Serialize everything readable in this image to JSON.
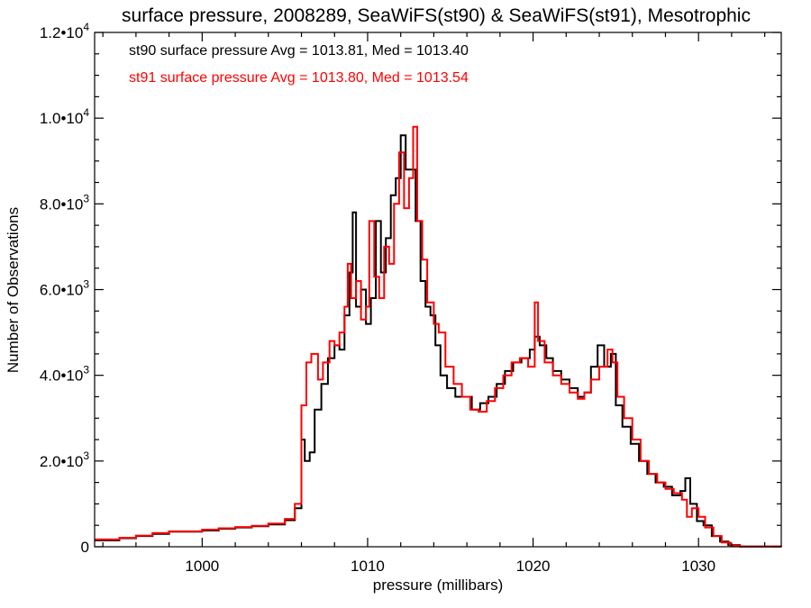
{
  "chart_data": {
    "type": "line",
    "title": "surface pressure, 2008289, SeaWiFS(st90) & SeaWiFS(st91), Mesotrophic",
    "xlabel": "pressure (millibars)",
    "ylabel": "Number of Observations",
    "xlim": [
      993.5,
      1035
    ],
    "ylim": [
      0,
      12000
    ],
    "x_ticks": [
      {
        "value": 1000,
        "label": "1000"
      },
      {
        "value": 1010,
        "label": "1010"
      },
      {
        "value": 1020,
        "label": "1020"
      },
      {
        "value": 1030,
        "label": "1030"
      }
    ],
    "y_ticks": [
      {
        "value": 0,
        "mant": "0",
        "exp": ""
      },
      {
        "value": 2000,
        "mant": "2.0•10",
        "exp": "3"
      },
      {
        "value": 4000,
        "mant": "4.0•10",
        "exp": "3"
      },
      {
        "value": 6000,
        "mant": "6.0•10",
        "exp": "3"
      },
      {
        "value": 8000,
        "mant": "8.0•10",
        "exp": "3"
      },
      {
        "value": 10000,
        "mant": "1.0•10",
        "exp": "4"
      },
      {
        "value": 12000,
        "mant": "1.2•10",
        "exp": "4"
      }
    ],
    "grid": false,
    "legend_position": "top-left",
    "series": [
      {
        "name": "st90",
        "color": "#000000",
        "legend": "st90 surface pressure Avg = 1013.81, Med = 1013.40",
        "points": [
          [
            993.5,
            150
          ],
          [
            995,
            200
          ],
          [
            996,
            250
          ],
          [
            997,
            300
          ],
          [
            998,
            350
          ],
          [
            999,
            350
          ],
          [
            1000,
            380
          ],
          [
            1001,
            420
          ],
          [
            1002,
            450
          ],
          [
            1003,
            480
          ],
          [
            1004,
            520
          ],
          [
            1005,
            620
          ],
          [
            1005.6,
            900
          ],
          [
            1006.0,
            2500
          ],
          [
            1006.2,
            2000
          ],
          [
            1006.5,
            2200
          ],
          [
            1006.8,
            3200
          ],
          [
            1007.2,
            3800
          ],
          [
            1007.6,
            4400
          ],
          [
            1008.0,
            4700
          ],
          [
            1008.3,
            4600
          ],
          [
            1008.6,
            5400
          ],
          [
            1008.9,
            6400
          ],
          [
            1009.1,
            7800
          ],
          [
            1009.3,
            5600
          ],
          [
            1009.6,
            6000
          ],
          [
            1009.9,
            5200
          ],
          [
            1010.2,
            5800
          ],
          [
            1010.5,
            7600
          ],
          [
            1010.8,
            6400
          ],
          [
            1011.1,
            7200
          ],
          [
            1011.4,
            8200
          ],
          [
            1011.7,
            8600
          ],
          [
            1012.0,
            9600
          ],
          [
            1012.3,
            8800
          ],
          [
            1012.6,
            8800
          ],
          [
            1012.9,
            7600
          ],
          [
            1013.2,
            6200
          ],
          [
            1013.5,
            5600
          ],
          [
            1013.8,
            5400
          ],
          [
            1014.1,
            4700
          ],
          [
            1014.4,
            4000
          ],
          [
            1014.8,
            3700
          ],
          [
            1015.3,
            3500
          ],
          [
            1015.8,
            3500
          ],
          [
            1016.3,
            3200
          ],
          [
            1016.8,
            3350
          ],
          [
            1017.3,
            3500
          ],
          [
            1017.8,
            3800
          ],
          [
            1018.3,
            4100
          ],
          [
            1018.8,
            4300
          ],
          [
            1019.3,
            4400
          ],
          [
            1019.8,
            4600
          ],
          [
            1020.1,
            4900
          ],
          [
            1020.4,
            4700
          ],
          [
            1020.8,
            4400
          ],
          [
            1021.2,
            4100
          ],
          [
            1021.7,
            3900
          ],
          [
            1022.2,
            3700
          ],
          [
            1022.7,
            3500
          ],
          [
            1023.1,
            3600
          ],
          [
            1023.5,
            4200
          ],
          [
            1023.9,
            4700
          ],
          [
            1024.3,
            4200
          ],
          [
            1024.7,
            4500
          ],
          [
            1025.0,
            3300
          ],
          [
            1025.4,
            2800
          ],
          [
            1025.9,
            2400
          ],
          [
            1026.4,
            2000
          ],
          [
            1026.9,
            1700
          ],
          [
            1027.4,
            1500
          ],
          [
            1027.9,
            1400
          ],
          [
            1028.4,
            1200
          ],
          [
            1028.9,
            1300
          ],
          [
            1029.2,
            1600
          ],
          [
            1029.5,
            1000
          ],
          [
            1029.9,
            600
          ],
          [
            1030.3,
            500
          ],
          [
            1030.8,
            250
          ],
          [
            1031.3,
            120
          ],
          [
            1031.8,
            40
          ],
          [
            1032.5,
            5
          ],
          [
            1035,
            0
          ]
        ]
      },
      {
        "name": "st91",
        "color": "#ff0000",
        "legend": "st91 surface pressure Avg = 1013.80, Med = 1013.54",
        "points": [
          [
            993.5,
            170
          ],
          [
            995,
            210
          ],
          [
            996,
            260
          ],
          [
            997,
            320
          ],
          [
            998,
            360
          ],
          [
            999,
            360
          ],
          [
            1000,
            400
          ],
          [
            1001,
            430
          ],
          [
            1002,
            460
          ],
          [
            1003,
            490
          ],
          [
            1004,
            540
          ],
          [
            1005,
            650
          ],
          [
            1005.6,
            1000
          ],
          [
            1006.0,
            3300
          ],
          [
            1006.3,
            4300
          ],
          [
            1006.6,
            4500
          ],
          [
            1007.0,
            3900
          ],
          [
            1007.3,
            4300
          ],
          [
            1007.7,
            4800
          ],
          [
            1008.0,
            4700
          ],
          [
            1008.3,
            5000
          ],
          [
            1008.6,
            5600
          ],
          [
            1008.8,
            6600
          ],
          [
            1009.0,
            5800
          ],
          [
            1009.3,
            6200
          ],
          [
            1009.6,
            5300
          ],
          [
            1009.9,
            5600
          ],
          [
            1010.1,
            7600
          ],
          [
            1010.4,
            6300
          ],
          [
            1010.7,
            5800
          ],
          [
            1011.0,
            7000
          ],
          [
            1011.3,
            6600
          ],
          [
            1011.6,
            8000
          ],
          [
            1011.9,
            9200
          ],
          [
            1012.2,
            7900
          ],
          [
            1012.5,
            8600
          ],
          [
            1012.75,
            9800
          ],
          [
            1013.0,
            7600
          ],
          [
            1013.3,
            6700
          ],
          [
            1013.6,
            5700
          ],
          [
            1014.0,
            5200
          ],
          [
            1014.3,
            5000
          ],
          [
            1014.7,
            4200
          ],
          [
            1015.2,
            3800
          ],
          [
            1015.7,
            3500
          ],
          [
            1016.2,
            3200
          ],
          [
            1016.7,
            3150
          ],
          [
            1017.2,
            3400
          ],
          [
            1017.7,
            3700
          ],
          [
            1018.2,
            4000
          ],
          [
            1018.7,
            4300
          ],
          [
            1019.2,
            4400
          ],
          [
            1019.7,
            4200
          ],
          [
            1020.1,
            5700
          ],
          [
            1020.3,
            4800
          ],
          [
            1020.7,
            4300
          ],
          [
            1021.2,
            4000
          ],
          [
            1021.7,
            3800
          ],
          [
            1022.2,
            3600
          ],
          [
            1022.7,
            3450
          ],
          [
            1023.1,
            3600
          ],
          [
            1023.5,
            3900
          ],
          [
            1024.0,
            4200
          ],
          [
            1024.5,
            4600
          ],
          [
            1024.8,
            4300
          ],
          [
            1025.1,
            3500
          ],
          [
            1025.5,
            3000
          ],
          [
            1026.0,
            2500
          ],
          [
            1026.5,
            2000
          ],
          [
            1027.0,
            1700
          ],
          [
            1027.5,
            1500
          ],
          [
            1028.0,
            1350
          ],
          [
            1028.5,
            1250
          ],
          [
            1029.0,
            1100
          ],
          [
            1029.3,
            700
          ],
          [
            1029.6,
            900
          ],
          [
            1030.0,
            700
          ],
          [
            1030.4,
            450
          ],
          [
            1030.9,
            250
          ],
          [
            1031.4,
            100
          ],
          [
            1031.9,
            30
          ],
          [
            1032.5,
            5
          ],
          [
            1035,
            0
          ]
        ]
      }
    ]
  }
}
